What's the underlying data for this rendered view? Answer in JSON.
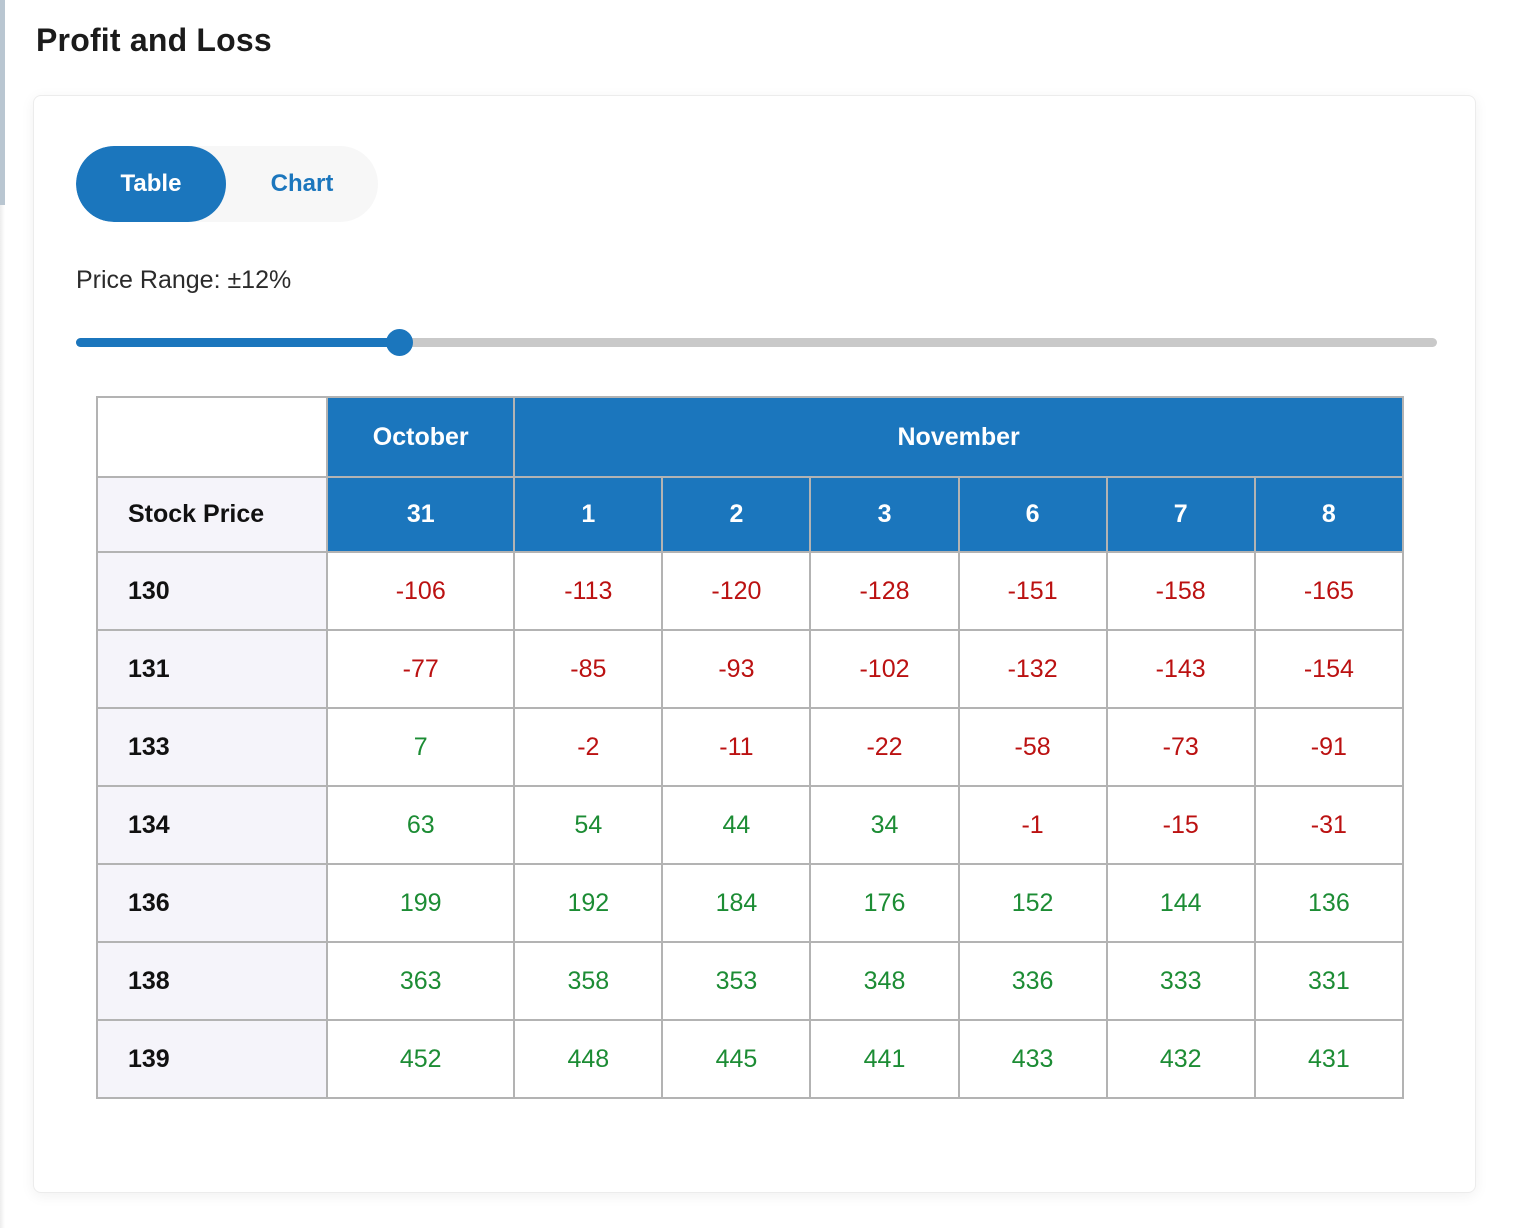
{
  "page": {
    "title": "Profit and Loss"
  },
  "tabs": {
    "table_label": "Table",
    "chart_label": "Chart",
    "active": "Table"
  },
  "slider": {
    "label": "Price Range: ±12%",
    "position_pct": 23.7
  },
  "table": {
    "month_headers": [
      {
        "label": "October",
        "colspan": 1
      },
      {
        "label": "November",
        "colspan": 6
      }
    ],
    "row_header_label": "Stock Price",
    "date_headers": [
      "31",
      "1",
      "2",
      "3",
      "6",
      "7",
      "8"
    ],
    "rows": [
      {
        "price": "130",
        "values": [
          -106,
          -113,
          -120,
          -128,
          -151,
          -158,
          -165
        ]
      },
      {
        "price": "131",
        "values": [
          -77,
          -85,
          -93,
          -102,
          -132,
          -143,
          -154
        ]
      },
      {
        "price": "133",
        "values": [
          7,
          -2,
          -11,
          -22,
          -58,
          -73,
          -91
        ]
      },
      {
        "price": "134",
        "values": [
          63,
          54,
          44,
          34,
          -1,
          -15,
          -31
        ]
      },
      {
        "price": "136",
        "values": [
          199,
          192,
          184,
          176,
          152,
          144,
          136
        ]
      },
      {
        "price": "138",
        "values": [
          363,
          358,
          353,
          348,
          336,
          333,
          331
        ]
      },
      {
        "price": "139",
        "values": [
          452,
          448,
          445,
          441,
          433,
          432,
          431
        ]
      }
    ]
  },
  "colors": {
    "accent_blue": "#1b76bd",
    "negative_red": "#bb1111",
    "positive_green": "#1c8c34",
    "border_gray": "#b3b3b3",
    "row_label_bg": "#f5f4fa",
    "track_gray": "#c9c9c9",
    "toggle_bg": "#f7f7f7"
  }
}
